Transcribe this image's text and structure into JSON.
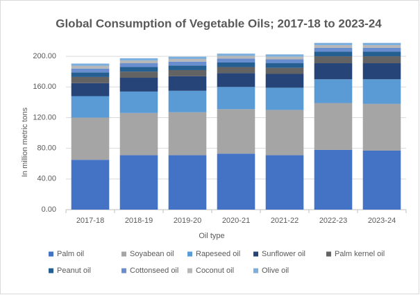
{
  "chart_data": {
    "type": "stacked-bar",
    "title": "Global Consumption of Vegetable Oils; 2017-18 to 2023-24",
    "x_label": "Oil type",
    "y_label": "In million metric tons",
    "categories": [
      "2017-18",
      "2018-19",
      "2019-20",
      "2020-21",
      "2021-22",
      "2022-23",
      "2023-24"
    ],
    "series": [
      {
        "name": "Palm oil",
        "color": "#4472c4",
        "values": [
          65,
          71,
          71,
          73,
          71,
          78,
          77
        ]
      },
      {
        "name": "Soyabean oil",
        "color": "#a5a5a5",
        "values": [
          55,
          55,
          56,
          58,
          59,
          61,
          61
        ]
      },
      {
        "name": "Rapeseed oil",
        "color": "#5b9bd5",
        "values": [
          28,
          28,
          28,
          29,
          29,
          31,
          32
        ]
      },
      {
        "name": "Sunflower oil",
        "color": "#264478",
        "values": [
          17,
          18,
          19,
          18,
          18,
          21,
          21
        ]
      },
      {
        "name": "Palm kernel oil",
        "color": "#636363",
        "values": [
          8,
          8,
          8,
          8,
          8,
          9,
          9
        ]
      },
      {
        "name": "Peanut oil",
        "color": "#255e91",
        "values": [
          6,
          6,
          6,
          6,
          6,
          6,
          6
        ]
      },
      {
        "name": "Cottonseed oil",
        "color": "#698ed0",
        "values": [
          5,
          5,
          5,
          5,
          5,
          5,
          5
        ]
      },
      {
        "name": "Coconut oil",
        "color": "#b7b7b7",
        "values": [
          3.5,
          3.5,
          3.5,
          3.5,
          3.5,
          3.5,
          3.5
        ]
      },
      {
        "name": "Olive oil",
        "color": "#7cafdd",
        "values": [
          3,
          3,
          3,
          3,
          3,
          3,
          3
        ]
      }
    ],
    "ylim": [
      0,
      220
    ],
    "yticks": [
      {
        "value": 0,
        "label": "0.00"
      },
      {
        "value": 40,
        "label": "40.00"
      },
      {
        "value": 80,
        "label": "80.00"
      },
      {
        "value": 120,
        "label": "120.00"
      },
      {
        "value": 160,
        "label": "160.00"
      },
      {
        "value": 200,
        "label": "200.00"
      }
    ],
    "grid": true
  }
}
